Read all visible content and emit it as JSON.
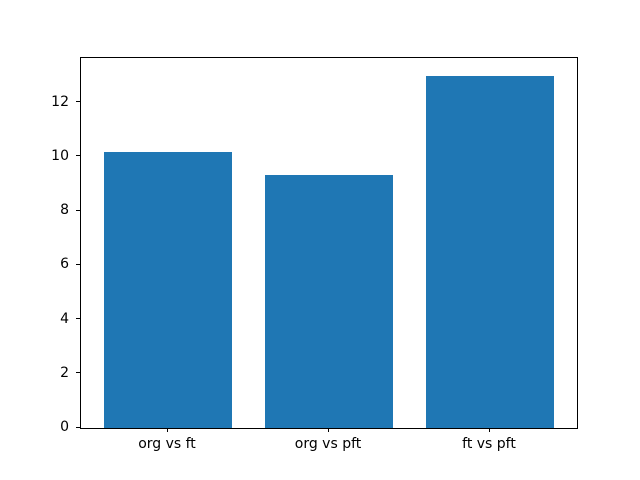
{
  "chart_data": {
    "type": "bar",
    "title": "",
    "xlabel": "",
    "ylabel": "",
    "categories": [
      "org vs ft",
      "org vs pft",
      "ft vs pft"
    ],
    "values": [
      10.2,
      9.35,
      13.0
    ],
    "yticks": [
      0,
      2,
      4,
      6,
      8,
      10,
      12
    ],
    "ylim": [
      0,
      13.65
    ],
    "xlim": [
      -0.54,
      2.54
    ],
    "x": [
      0,
      1,
      2
    ],
    "bar_width": 0.8,
    "bar_color": "#1f77b4",
    "background_color": "#ffffff",
    "axis_color": "#000000",
    "text_color": "#000000",
    "grid": false,
    "legend": false
  }
}
